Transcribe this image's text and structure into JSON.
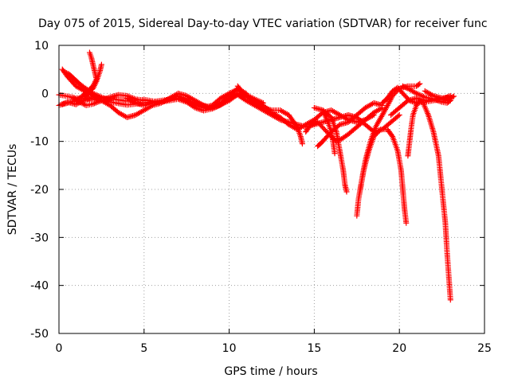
{
  "chart_data": {
    "type": "scatter",
    "title": "Day 075 of 2015, Sidereal Day-to-day VTEC variation (SDTVAR) for receiver func",
    "xlabel": "GPS time / hours",
    "ylabel": "SDTVAR / TECUs",
    "xlim": [
      0,
      25
    ],
    "ylim": [
      -50,
      10
    ],
    "xticks": [
      0,
      5,
      10,
      15,
      20,
      25
    ],
    "yticks": [
      -50,
      -40,
      -30,
      -20,
      -10,
      0,
      10
    ],
    "grid": true,
    "marker": "+",
    "series": [
      {
        "name": "SDTVAR",
        "color": "#ff0000",
        "tracks": [
          [
            [
              0.0,
              -2.5
            ],
            [
              0.5,
              -1.8
            ],
            [
              1.0,
              -2.3
            ],
            [
              1.5,
              -1.4
            ],
            [
              2.0,
              -0.9
            ],
            [
              3.0,
              -1.1
            ],
            [
              4.0,
              -1.6
            ],
            [
              5.0,
              -1.3
            ],
            [
              6.0,
              -1.9
            ],
            [
              7.0,
              -0.5
            ],
            [
              8.0,
              -2.5
            ],
            [
              8.5,
              -3.0
            ],
            [
              9.0,
              -2.5
            ],
            [
              9.5,
              -1.0
            ],
            [
              10.0,
              0.0
            ],
            [
              10.5,
              0.8
            ],
            [
              11.0,
              -0.5
            ],
            [
              11.5,
              -2.0
            ]
          ],
          [
            [
              0.0,
              -0.3
            ],
            [
              0.5,
              -0.6
            ],
            [
              1.0,
              -1.0
            ],
            [
              2.0,
              -1.2
            ],
            [
              3.0,
              -1.8
            ],
            [
              4.0,
              -2.4
            ],
            [
              5.0,
              -2.0
            ],
            [
              6.0,
              -1.5
            ],
            [
              7.0,
              -1.0
            ],
            [
              8.0,
              -2.0
            ],
            [
              9.0,
              -3.2
            ],
            [
              10.0,
              -1.5
            ],
            [
              10.5,
              -0.2
            ],
            [
              11.0,
              -0.8
            ]
          ],
          [
            [
              0.2,
              5.0
            ],
            [
              0.5,
              3.5
            ],
            [
              1.0,
              1.5
            ],
            [
              1.5,
              0.5
            ],
            [
              2.0,
              -0.5
            ],
            [
              2.5,
              -1.5
            ],
            [
              3.0,
              -2.5
            ],
            [
              3.5,
              -4.0
            ],
            [
              4.0,
              -5.0
            ],
            [
              4.5,
              -4.5
            ],
            [
              5.0,
              -3.5
            ],
            [
              5.5,
              -2.5
            ],
            [
              6.0,
              -2.0
            ],
            [
              6.5,
              -1.0
            ],
            [
              7.0,
              0.0
            ],
            [
              7.5,
              -0.5
            ],
            [
              8.0,
              -1.5
            ],
            [
              8.5,
              -2.5
            ],
            [
              9.0,
              -3.0
            ],
            [
              9.5,
              -2.0
            ],
            [
              10.0,
              -0.5
            ],
            [
              10.5,
              1.0
            ],
            [
              11.0,
              0.0
            ]
          ],
          [
            [
              0.3,
              4.5
            ],
            [
              0.6,
              4.0
            ],
            [
              0.9,
              3.0
            ],
            [
              1.2,
              2.0
            ],
            [
              1.5,
              1.2
            ],
            [
              2.0,
              0.0
            ],
            [
              2.5,
              -0.8
            ],
            [
              3.0,
              -1.5
            ]
          ],
          [
            [
              1.8,
              8.5
            ],
            [
              1.9,
              7.5
            ],
            [
              2.0,
              6.0
            ],
            [
              2.1,
              4.5
            ],
            [
              2.2,
              3.0
            ],
            [
              2.0,
              1.5
            ],
            [
              1.7,
              0.5
            ],
            [
              1.4,
              -0.5
            ],
            [
              1.0,
              -1.5
            ],
            [
              0.5,
              -2.0
            ],
            [
              0.2,
              -2.3
            ]
          ],
          [
            [
              1.5,
              -1.0
            ],
            [
              1.8,
              0.5
            ],
            [
              2.0,
              1.0
            ],
            [
              2.2,
              2.5
            ],
            [
              2.4,
              4.5
            ],
            [
              2.5,
              6.0
            ]
          ],
          [
            [
              0.8,
              -0.8
            ],
            [
              1.2,
              -1.8
            ],
            [
              1.6,
              -2.5
            ],
            [
              2.0,
              -2.2
            ],
            [
              2.5,
              -1.5
            ],
            [
              3.0,
              -0.8
            ],
            [
              3.5,
              -0.3
            ],
            [
              4.0,
              -0.5
            ],
            [
              4.5,
              -1.2
            ],
            [
              5.0,
              -1.5
            ]
          ],
          [
            [
              4.0,
              -1.0
            ],
            [
              4.5,
              -2.0
            ],
            [
              5.0,
              -2.5
            ],
            [
              5.5,
              -2.0
            ],
            [
              6.0,
              -1.8
            ],
            [
              6.5,
              -1.5
            ],
            [
              7.0,
              -1.2
            ],
            [
              7.5,
              -1.8
            ],
            [
              8.0,
              -3.0
            ],
            [
              8.5,
              -3.6
            ],
            [
              9.0,
              -3.2
            ],
            [
              9.5,
              -2.4
            ],
            [
              10.0,
              -1.2
            ],
            [
              10.5,
              0.0
            ],
            [
              11.0,
              -0.3
            ],
            [
              11.5,
              -1.2
            ],
            [
              12.0,
              -2.0
            ]
          ],
          [
            [
              10.0,
              -1.0
            ],
            [
              10.5,
              -0.3
            ],
            [
              11.0,
              -1.5
            ],
            [
              11.5,
              -2.5
            ],
            [
              12.0,
              -3.5
            ],
            [
              12.5,
              -4.5
            ],
            [
              13.0,
              -5.5
            ],
            [
              13.5,
              -6.0
            ],
            [
              14.0,
              -6.5
            ],
            [
              14.5,
              -7.0
            ],
            [
              15.0,
              -6.5
            ],
            [
              15.5,
              -6.0
            ],
            [
              16.0,
              -5.5
            ],
            [
              16.5,
              -5.0
            ],
            [
              17.0,
              -4.5
            ],
            [
              17.5,
              -5.0
            ],
            [
              18.0,
              -6.5
            ],
            [
              18.5,
              -8.0
            ],
            [
              19.0,
              -7.5
            ],
            [
              19.5,
              -6.0
            ],
            [
              20.0,
              -4.5
            ]
          ],
          [
            [
              10.5,
              1.5
            ],
            [
              11.0,
              -0.5
            ],
            [
              11.5,
              -2.0
            ],
            [
              12.0,
              -3.0
            ],
            [
              12.5,
              -3.5
            ],
            [
              13.0,
              -3.5
            ],
            [
              13.5,
              -4.5
            ],
            [
              14.0,
              -7.0
            ],
            [
              14.2,
              -9.0
            ],
            [
              14.3,
              -10.5
            ]
          ],
          [
            [
              11.0,
              -0.5
            ],
            [
              11.5,
              -1.5
            ],
            [
              12.0,
              -2.5
            ],
            [
              12.5,
              -4.0
            ],
            [
              13.0,
              -5.0
            ],
            [
              13.5,
              -6.5
            ],
            [
              14.0,
              -7.5
            ],
            [
              14.5,
              -6.5
            ],
            [
              15.0,
              -5.5
            ],
            [
              15.5,
              -4.0
            ],
            [
              16.0,
              -3.5
            ],
            [
              16.5,
              -4.5
            ],
            [
              17.0,
              -5.5
            ],
            [
              17.5,
              -6.0
            ],
            [
              18.0,
              -5.5
            ],
            [
              18.5,
              -4.5
            ]
          ],
          [
            [
              15.0,
              -3.0
            ],
            [
              15.5,
              -3.5
            ],
            [
              16.0,
              -5.0
            ],
            [
              16.3,
              -8.0
            ],
            [
              16.5,
              -12.0
            ],
            [
              16.7,
              -16.0
            ],
            [
              16.8,
              -19.0
            ],
            [
              16.9,
              -20.5
            ]
          ],
          [
            [
              14.5,
              -8.0
            ],
            [
              14.8,
              -6.5
            ],
            [
              15.2,
              -6.0
            ],
            [
              15.6,
              -7.5
            ],
            [
              16.0,
              -9.0
            ],
            [
              16.3,
              -10.0
            ],
            [
              16.6,
              -9.5
            ],
            [
              17.0,
              -8.5
            ],
            [
              17.5,
              -7.0
            ],
            [
              18.0,
              -5.5
            ],
            [
              18.5,
              -4.0
            ],
            [
              19.0,
              -3.0
            ]
          ],
          [
            [
              15.2,
              -11.0
            ],
            [
              15.5,
              -10.0
            ],
            [
              16.0,
              -8.0
            ],
            [
              16.5,
              -6.5
            ],
            [
              17.0,
              -6.0
            ],
            [
              17.5,
              -4.5
            ],
            [
              18.0,
              -3.0
            ],
            [
              18.5,
              -2.0
            ],
            [
              19.0,
              -2.5
            ]
          ],
          [
            [
              15.5,
              -3.5
            ],
            [
              15.8,
              -6.0
            ],
            [
              16.0,
              -8.0
            ],
            [
              16.1,
              -10.0
            ],
            [
              16.2,
              -12.5
            ]
          ],
          [
            [
              17.5,
              -25.5
            ],
            [
              17.6,
              -22.0
            ],
            [
              17.8,
              -18.0
            ],
            [
              18.0,
              -14.0
            ],
            [
              18.3,
              -10.0
            ],
            [
              18.6,
              -7.0
            ],
            [
              19.0,
              -4.5
            ],
            [
              19.3,
              -2.5
            ],
            [
              19.6,
              -0.5
            ],
            [
              20.0,
              1.0
            ],
            [
              20.5,
              1.5
            ],
            [
              21.0,
              1.5
            ],
            [
              21.2,
              2.0
            ]
          ],
          [
            [
              17.7,
              -20.0
            ],
            [
              17.9,
              -16.0
            ],
            [
              18.2,
              -12.0
            ],
            [
              18.5,
              -9.0
            ],
            [
              18.9,
              -7.5
            ],
            [
              19.3,
              -7.5
            ],
            [
              19.6,
              -9.0
            ],
            [
              19.9,
              -12.0
            ],
            [
              20.1,
              -16.0
            ],
            [
              20.2,
              -20.0
            ],
            [
              20.3,
              -24.0
            ],
            [
              20.4,
              -27.0
            ]
          ],
          [
            [
              19.0,
              -2.0
            ],
            [
              19.3,
              -1.0
            ],
            [
              19.6,
              0.5
            ],
            [
              19.9,
              1.2
            ],
            [
              20.2,
              0.0
            ],
            [
              20.6,
              -1.5
            ],
            [
              21.0,
              -2.0
            ],
            [
              21.5,
              -1.8
            ],
            [
              22.0,
              -1.5
            ],
            [
              22.5,
              -1.2
            ],
            [
              23.0,
              -0.5
            ]
          ],
          [
            [
              20.5,
              -13.0
            ],
            [
              20.6,
              -10.0
            ],
            [
              20.7,
              -7.0
            ],
            [
              20.8,
              -4.5
            ],
            [
              21.0,
              -2.5
            ],
            [
              21.2,
              -1.5
            ],
            [
              21.4,
              -2.0
            ],
            [
              21.7,
              -4.5
            ],
            [
              22.0,
              -8.0
            ],
            [
              22.3,
              -13.0
            ],
            [
              22.5,
              -20.0
            ],
            [
              22.7,
              -27.0
            ],
            [
              22.8,
              -33.0
            ],
            [
              22.9,
              -38.0
            ],
            [
              23.0,
              -43.0
            ]
          ],
          [
            [
              19.5,
              -4.5
            ],
            [
              20.0,
              -3.0
            ],
            [
              20.5,
              -1.5
            ],
            [
              21.0,
              -1.0
            ],
            [
              21.5,
              -1.5
            ],
            [
              22.0,
              -1.2
            ],
            [
              22.5,
              -1.0
            ],
            [
              23.0,
              -0.8
            ]
          ],
          [
            [
              21.5,
              0.5
            ],
            [
              22.0,
              -0.5
            ],
            [
              22.5,
              -1.0
            ],
            [
              22.8,
              -1.5
            ],
            [
              23.0,
              -1.0
            ],
            [
              23.2,
              -0.6
            ]
          ],
          [
            [
              20.2,
              1.5
            ],
            [
              20.5,
              1.0
            ],
            [
              21.0,
              0.0
            ],
            [
              21.5,
              -0.8
            ],
            [
              22.0,
              -1.2
            ],
            [
              22.5,
              -1.8
            ],
            [
              22.8,
              -2.0
            ],
            [
              23.0,
              -1.5
            ]
          ]
        ]
      }
    ]
  }
}
